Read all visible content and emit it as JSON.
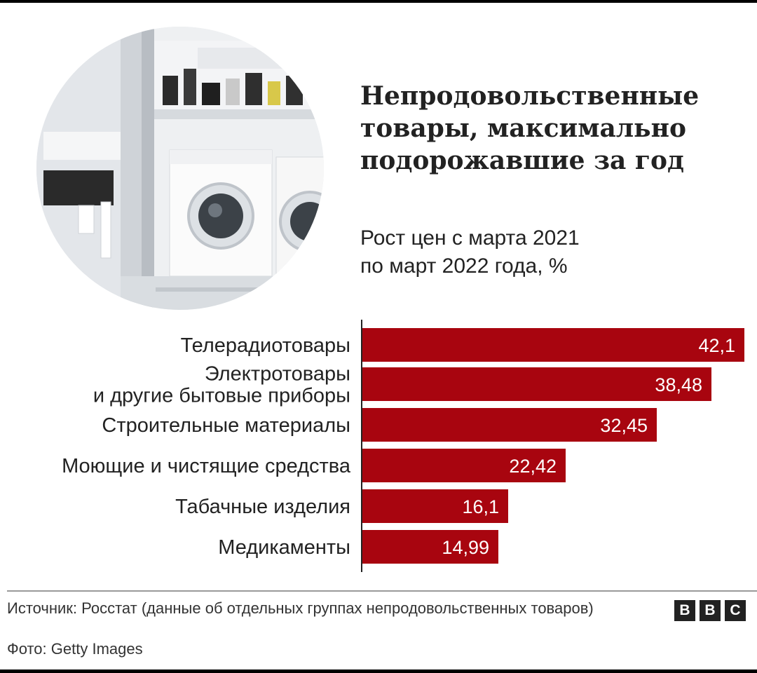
{
  "title": "Непродовольственные\nтовары, максимально\nподорожавшие за год",
  "subtitle": "Рост цен с марта 2021\nпо март 2022 года, %",
  "colors": {
    "bar": "#a8050f",
    "text": "#222222"
  },
  "chart_data": {
    "type": "bar",
    "orientation": "horizontal",
    "categories": [
      "Телерадиотовары",
      "Электротовары\nи другие бытовые приборы",
      "Строительные материалы",
      "Моющие и чистящие средства",
      "Табачные изделия",
      "Медикаменты"
    ],
    "values": [
      42.1,
      38.48,
      32.45,
      22.42,
      16.1,
      14.99
    ],
    "value_labels": [
      "42,1",
      "38,48",
      "32,45",
      "22,42",
      "16,1",
      "14,99"
    ],
    "xlim": [
      0,
      42.1
    ],
    "grid": false,
    "legend": "none"
  },
  "footer": {
    "source": "Источник: Росстат (данные об отдельных группах непродовольственных товаров)",
    "photo_credit": "Фото: Getty Images",
    "logo_letters": [
      "B",
      "B",
      "C"
    ]
  }
}
